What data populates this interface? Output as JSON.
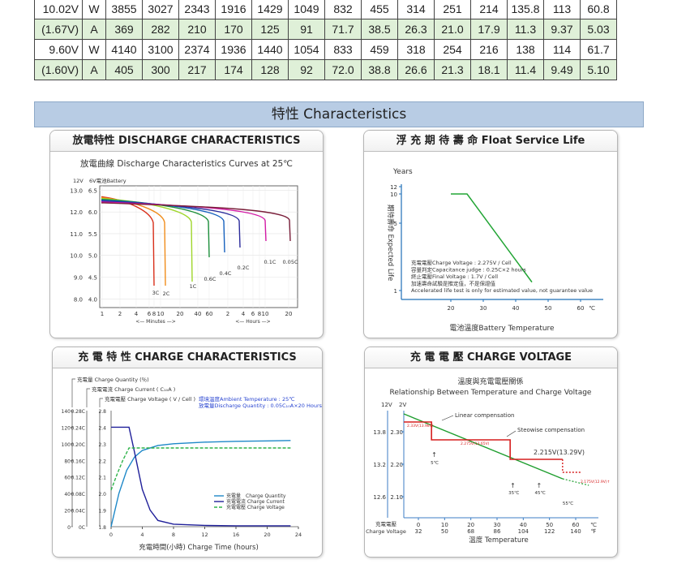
{
  "table": {
    "rows": [
      {
        "voltage": "10.02V",
        "unit": "W",
        "values": [
          "3855",
          "3027",
          "2343",
          "1916",
          "1429",
          "1049",
          "832",
          "455",
          "314",
          "251",
          "214",
          "135.8",
          "113",
          "60.8"
        ]
      },
      {
        "voltage": "(1.67V)",
        "unit": "A",
        "values": [
          "369",
          "282",
          "210",
          "170",
          "125",
          "91",
          "71.7",
          "38.5",
          "26.3",
          "21.0",
          "17.9",
          "11.3",
          "9.37",
          "5.03"
        ]
      },
      {
        "voltage": "9.60V",
        "unit": "W",
        "values": [
          "4140",
          "3100",
          "2374",
          "1936",
          "1440",
          "1054",
          "833",
          "459",
          "318",
          "254",
          "216",
          "138",
          "114",
          "61.7"
        ]
      },
      {
        "voltage": "(1.60V)",
        "unit": "A",
        "values": [
          "405",
          "300",
          "217",
          "174",
          "128",
          "92",
          "72.0",
          "38.8",
          "26.6",
          "21.3",
          "18.1",
          "11.4",
          "9.49",
          "5.10"
        ]
      }
    ]
  },
  "section_title": "特性  Characteristics",
  "colors": {
    "band": "#b8cce4",
    "green_row": "#dff0d8"
  },
  "chart_data": [
    {
      "type": "line",
      "panel_title": "放電特性 DISCHARGE CHARACTERISTICS",
      "title": "放電曲線 Discharge Characteristics Curves at 25℃",
      "y_headers": [
        "12V",
        "6V電池Battery"
      ],
      "y_ticks_12v": [
        "13.0",
        "12.0",
        "11.0",
        "10.0",
        "9.0",
        "8.0"
      ],
      "y_ticks_6v": [
        "6.5",
        "6.0",
        "5.5",
        "5.0",
        "4.5",
        "4.0"
      ],
      "ylim": [
        3.8,
        6.6
      ],
      "x_ticks_minutes": [
        "1",
        "2",
        "4",
        "6",
        "8",
        "10",
        "20",
        "40",
        "60"
      ],
      "x_ticks_hours": [
        "2",
        "4",
        "6",
        "8",
        "10",
        "20"
      ],
      "x_unit_minutes": "Minutes",
      "x_unit_hours": "Hours",
      "series": [
        {
          "name": "3C",
          "color": "#d9301b",
          "end_x": 5.3,
          "end_v": 4.52
        },
        {
          "name": "2C",
          "color": "#f08c1a",
          "end_x": 6.2,
          "end_v": 4.52
        },
        {
          "name": "1C",
          "color": "#9fd62b",
          "end_x": 8.6,
          "end_v": 4.62
        },
        {
          "name": "0.6C",
          "color": "#1d8f3c",
          "end_x": 10.0,
          "end_v": 4.95
        },
        {
          "name": "0.4C",
          "color": "#1560bd",
          "end_x": 11.5,
          "end_v": 5.07
        },
        {
          "name": "0.2C",
          "color": "#2b2b9b",
          "end_x": 13.3,
          "end_v": 5.17
        },
        {
          "name": "0.1C",
          "color": "#d31aa6",
          "end_x": 15.4,
          "end_v": 5.27
        },
        {
          "name": "0.05C",
          "color": "#7a1f3a",
          "end_x": 17.5,
          "end_v": 5.27
        }
      ]
    },
    {
      "type": "line",
      "panel_title": "浮 充 期 待 壽 命 Float Service Life",
      "ylabel": "期待壽命 Expected Life",
      "y_header": "Years",
      "y_ticks": [
        "12",
        "10",
        "5",
        "1"
      ],
      "xlabel": "電池溫度Battery Temperature",
      "x_ticks": [
        "20",
        "30",
        "40",
        "50",
        "60"
      ],
      "x_unit": "℃",
      "series": [
        {
          "name": "",
          "color": "#22a535",
          "points": [
            [
              20,
              10
            ],
            [
              25,
              10
            ],
            [
              45,
              1.5
            ]
          ]
        }
      ],
      "notes": [
        "充電電壓Charge Voltage : 2.275V / Cell",
        "容量判定Capacitance judge : 0.25C×2 hours",
        "終止電壓Final Voltage : 1.7V / Cell",
        "加速壽命試驗是推定值，不是保證值",
        "Accelerated life test is only for estimated value, not guarantee value"
      ]
    },
    {
      "type": "line",
      "panel_title": "充 電 特 性  CHARGE CHARACTERISTICS",
      "legend_headers": [
        "充電量 Charge Quantity (％)",
        "充電電流 Charge Current ( C₁₀A )",
        "充電電壓 Charge Voltage ( V / Cell )"
      ],
      "conditions": [
        "環境溫度Ambient Temperature : 25℃",
        "放電量Discharge Quantity : 0.05C₁₀A×20 Hours"
      ],
      "y_ticks_quantity": [
        "140",
        "120",
        "100",
        "80",
        "60",
        "40",
        "20",
        "0"
      ],
      "y_ticks_current": [
        "0.28C",
        "0.24C",
        "0.20C",
        "0.16C",
        "0.12C",
        "0.08C",
        "0.04C",
        "0C"
      ],
      "y_ticks_voltage": [
        "2.8",
        "2.4",
        "2.3",
        "2.2",
        "2.1",
        "2.0",
        "1.9",
        "1.8"
      ],
      "x_ticks": [
        "0",
        "4",
        "8",
        "12",
        "16",
        "20",
        "24"
      ],
      "xlabel": "充電時間(小時)  Charge Time (hours)",
      "series": [
        {
          "name": "充電量　Charge Quantity",
          "color": "#1e88c8",
          "points": [
            [
              0,
              0
            ],
            [
              1,
              40
            ],
            [
              2,
              68
            ],
            [
              3,
              84
            ],
            [
              4,
              92
            ],
            [
              6,
              98
            ],
            [
              8,
              100
            ],
            [
              12,
              102
            ],
            [
              16,
              103
            ],
            [
              20,
              103.5
            ],
            [
              23,
              104
            ]
          ]
        },
        {
          "name": "充電電流 Charge Current",
          "color": "#20209a",
          "points": [
            [
              0,
              0.24
            ],
            [
              2.3,
              0.24
            ],
            [
              3,
              0.18
            ],
            [
              4,
              0.09
            ],
            [
              5,
              0.04
            ],
            [
              6,
              0.015
            ],
            [
              8,
              0.006
            ],
            [
              12,
              0.003
            ],
            [
              16,
              0.002
            ],
            [
              23,
              0.002
            ]
          ]
        },
        {
          "name": "充電電壓 Charge Voltage",
          "color": "#2fb34a",
          "points": [
            [
              0,
              2.02
            ],
            [
              0.8,
              2.12
            ],
            [
              1.5,
              2.2
            ],
            [
              2.3,
              2.275
            ],
            [
              8,
              2.275
            ],
            [
              16,
              2.275
            ],
            [
              23,
              2.275
            ]
          ]
        }
      ]
    },
    {
      "type": "line",
      "panel_title": "充 電 電 壓  CHARGE VOLTAGE",
      "title": "溫度與充電電壓關係",
      "subtitle": "Relationship Between Temperature and Charge Voltage",
      "y_headers": [
        "12V",
        "2V"
      ],
      "y_ticks_12v": [
        "13.8",
        "13.2",
        "12.6"
      ],
      "y_ticks_2v": [
        "2.30",
        "2.20",
        "2.10"
      ],
      "x_ticks_c": [
        "0",
        "10",
        "20",
        "30",
        "40",
        "50",
        "60"
      ],
      "x_ticks_f": [
        "32",
        "50",
        "68",
        "86",
        "104",
        "122",
        "140"
      ],
      "x_unit": "℃\n℉",
      "ylabel_bottom": [
        "充電電壓",
        "Charge Voltage"
      ],
      "xlabel": "溫度  Temperature",
      "labels": {
        "linear": "Linear compensation",
        "steowise": "Steowise compensation",
        "v_main": "2.215V(13.29V)",
        "v_low": "2.275V(13.65V)",
        "v_high": "2.33V(13.98V)",
        "v_end": "2.175V(12.9V)↑",
        "t5": "5℃",
        "t35": "35℃",
        "t45": "45℃",
        "t55": "55℃"
      }
    }
  ]
}
